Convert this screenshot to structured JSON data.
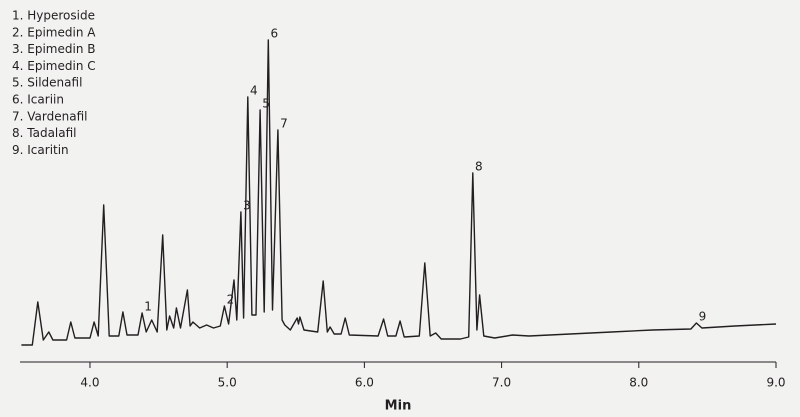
{
  "chart_data": {
    "type": "line",
    "legend_items": [
      "1. Hyperoside",
      "2. Epimedin A",
      "3. Epimedin B",
      "4. Epimedin C",
      "5. Sildenafil",
      "6. Icariin",
      "7. Vardenafil",
      "8. Tadalafil",
      "9. Icaritin"
    ],
    "x_label": "Min",
    "color": "#231f20",
    "x": [
      3.5,
      3.58,
      3.62,
      3.66,
      3.7,
      3.73,
      3.83,
      3.86,
      3.89,
      4.0,
      4.03,
      4.06,
      4.1,
      4.14,
      4.21,
      4.24,
      4.27,
      4.35,
      4.38,
      4.41,
      4.45,
      4.49,
      4.53,
      4.56,
      4.58,
      4.61,
      4.63,
      4.66,
      4.71,
      4.73,
      4.75,
      4.8,
      4.85,
      4.9,
      4.95,
      4.98,
      5.01,
      5.05,
      5.07,
      5.1,
      5.12,
      5.15,
      5.18,
      5.21,
      5.24,
      5.27,
      5.3,
      5.33,
      5.37,
      5.4,
      5.42,
      5.46,
      5.51,
      5.52,
      5.53,
      5.56,
      5.66,
      5.7,
      5.73,
      5.75,
      5.78,
      5.83,
      5.86,
      5.89,
      6.1,
      6.14,
      6.17,
      6.23,
      6.26,
      6.29,
      6.4,
      6.44,
      6.48,
      6.52,
      6.56,
      6.7,
      6.76,
      6.79,
      6.82,
      6.84,
      6.87,
      6.95,
      7.08,
      7.2,
      7.5,
      7.8,
      8.1,
      8.38,
      8.42,
      8.46,
      8.7,
      9.0
    ],
    "values": [
      5,
      5,
      48,
      10,
      18,
      10,
      10,
      28,
      12,
      12,
      28,
      14,
      145,
      14,
      14,
      38,
      15,
      15,
      37,
      18,
      30,
      18,
      115,
      20,
      34,
      22,
      42,
      22,
      60,
      24,
      28,
      22,
      25,
      22,
      24,
      44,
      26,
      70,
      30,
      138,
      32,
      253,
      35,
      35,
      240,
      38,
      310,
      40,
      220,
      30,
      25,
      20,
      32,
      26,
      33,
      20,
      18,
      69,
      18,
      23,
      16,
      16,
      32,
      15,
      14,
      31,
      14,
      14,
      29,
      13,
      14,
      87,
      14,
      17,
      11,
      11,
      13,
      177,
      20,
      55,
      14,
      12,
      15,
      14,
      16,
      18,
      20,
      21,
      27,
      22,
      24,
      26
    ],
    "peaks": [
      {
        "label": "1",
        "x": 4.38
      },
      {
        "label": "2",
        "x": 4.98
      },
      {
        "label": "3",
        "x": 5.1
      },
      {
        "label": "4",
        "x": 5.15
      },
      {
        "label": "5",
        "x": 5.24
      },
      {
        "label": "6",
        "x": 5.3
      },
      {
        "label": "7",
        "x": 5.37
      },
      {
        "label": "8",
        "x": 6.79
      },
      {
        "label": "9",
        "x": 8.42
      }
    ],
    "xlim": [
      3.49,
      9.0
    ],
    "ylim": [
      0,
      320
    ],
    "xticks": [
      {
        "value": 4,
        "label": "4.0"
      },
      {
        "value": 5,
        "label": "5.0"
      },
      {
        "value": 6,
        "label": "6.0"
      },
      {
        "value": 7,
        "label": "7.0"
      },
      {
        "value": 8,
        "label": "8.0"
      },
      {
        "value": 9,
        "label": "9.0"
      }
    ]
  }
}
